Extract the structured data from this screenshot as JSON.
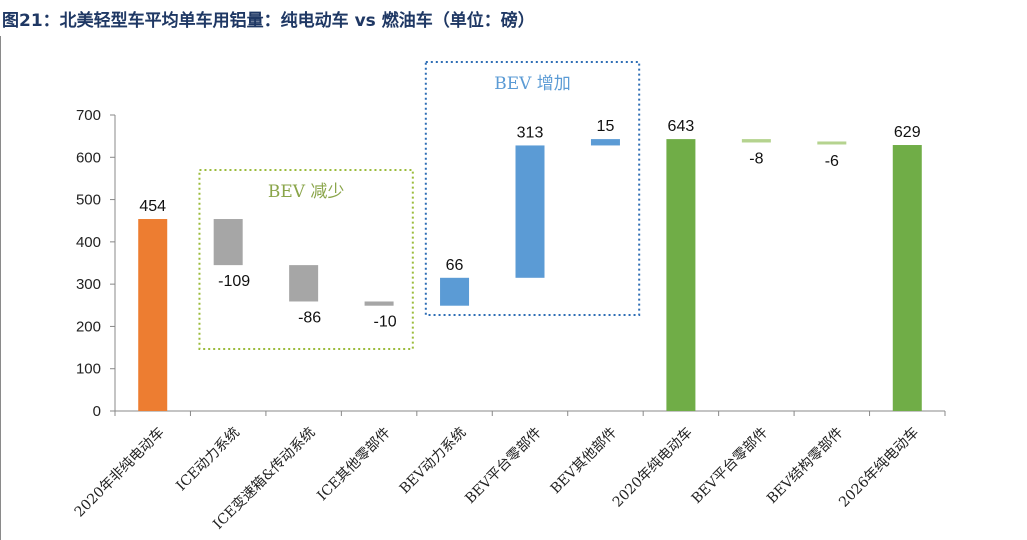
{
  "title": "图21：北美轻型车平均单车用铝量：纯电动车 vs 燃油车（单位：磅）",
  "chart_data": {
    "type": "bar",
    "subtype": "waterfall",
    "title": "图21：北美轻型车平均单车用铝量：纯电动车 vs 燃油车（单位：磅）",
    "xlabel": "",
    "ylabel": "",
    "ylim": [
      0,
      700
    ],
    "yticks": [
      "0",
      "100",
      "200",
      "300",
      "400",
      "500",
      "600",
      "700"
    ],
    "grid": false,
    "legend": "none",
    "categories": [
      "2020年非纯电动车",
      "ICE动力系统",
      "ICE变速箱&传动系统",
      "ICE其他零部件",
      "BEV动力系统",
      "BEV平台零部件",
      "BEV其他部件",
      "2020年纯电动车",
      "BEV平台零部件",
      "BEV结构零部件",
      "2026年纯电动车"
    ],
    "bars": [
      {
        "bottom": 0,
        "top": 454,
        "label": "454",
        "kind": "total-orange"
      },
      {
        "bottom": 345,
        "top": 454,
        "label": "-109",
        "kind": "decrease"
      },
      {
        "bottom": 259,
        "top": 345,
        "label": "-86",
        "kind": "decrease"
      },
      {
        "bottom": 249,
        "top": 259,
        "label": "-10",
        "kind": "decrease"
      },
      {
        "bottom": 249,
        "top": 315,
        "label": "66",
        "kind": "increase"
      },
      {
        "bottom": 315,
        "top": 628,
        "label": "313",
        "kind": "increase"
      },
      {
        "bottom": 628,
        "top": 643,
        "label": "15",
        "kind": "increase"
      },
      {
        "bottom": 0,
        "top": 643,
        "label": "643",
        "kind": "total-green"
      },
      {
        "bottom": 635,
        "top": 643,
        "label": "-8",
        "kind": "decrease-small"
      },
      {
        "bottom": 629,
        "top": 635,
        "label": "-6",
        "kind": "decrease-small"
      },
      {
        "bottom": 0,
        "top": 629,
        "label": "629",
        "kind": "total-green"
      }
    ],
    "group_boxes": [
      {
        "label": "BEV 减少",
        "covers": [
          1,
          2,
          3
        ],
        "color": "#9bbb3b"
      },
      {
        "label": "BEV 增加",
        "covers": [
          4,
          5,
          6
        ],
        "color": "#2e6eb5"
      }
    ],
    "colors": {
      "total-orange": "#ed7d31",
      "total-green": "#70ad47",
      "decrease": "#a6a6a6",
      "increase": "#5b9bd5",
      "decrease-small": "#b5d38f",
      "box_text_decrease": "#8aa54a",
      "box_text_increase": "#5b9bd5"
    }
  }
}
